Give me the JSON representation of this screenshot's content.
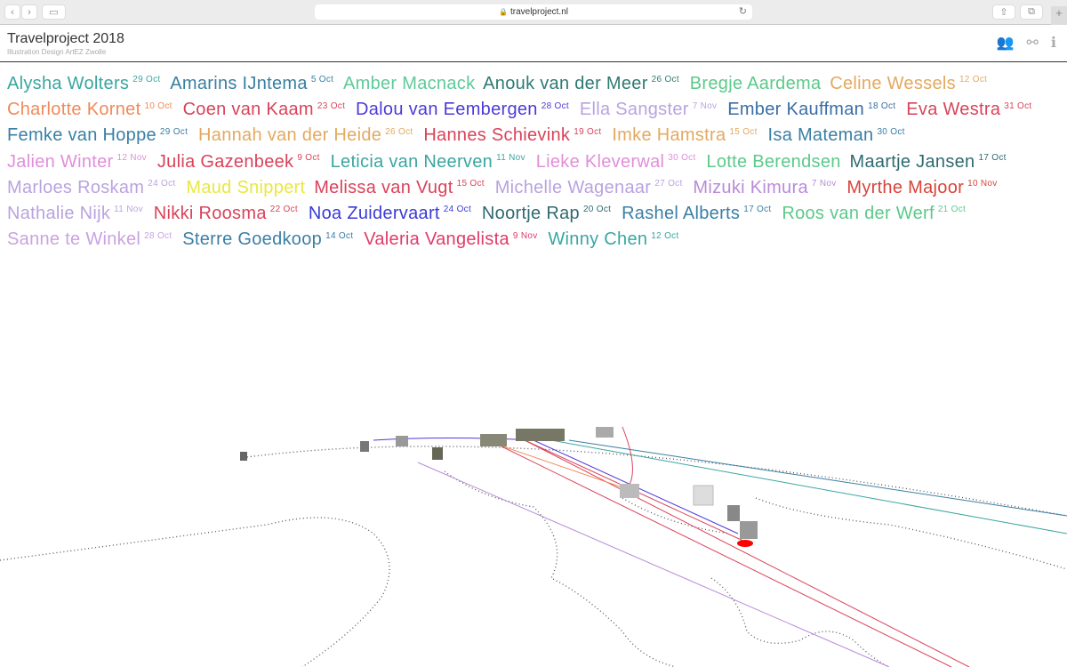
{
  "browser": {
    "url": "travelproject.nl",
    "plus": "+"
  },
  "header": {
    "title": "Travelproject 2018",
    "subtitle": "Illustration Design ArtEZ Zwolle",
    "icons": [
      "people-icon",
      "network-icon",
      "info-icon"
    ]
  },
  "students": [
    {
      "name": "Alysha Wolters",
      "date": "29 Oct",
      "color": "#3aa6a0"
    },
    {
      "name": "Amarins IJntema",
      "date": "5 Oct",
      "color": "#3a7fa0"
    },
    {
      "name": "Amber Macnack",
      "date": "",
      "color": "#5fc99a"
    },
    {
      "name": "Anouk van der Meer",
      "date": "26 Oct",
      "color": "#2e7a73"
    },
    {
      "name": "Bregje Aardema",
      "date": "",
      "color": "#5cc98a"
    },
    {
      "name": "Celine Wessels",
      "date": "12 Oct",
      "color": "#e3a960"
    },
    {
      "name": "Charlotte Kornet",
      "date": "10 Oct",
      "color": "#f08a5a"
    },
    {
      "name": "Coen van Kaam",
      "date": "23 Oct",
      "color": "#d9435a"
    },
    {
      "name": "Dalou van Eembergen",
      "date": "28 Oct",
      "color": "#4d3ad9"
    },
    {
      "name": "Ella Sangster",
      "date": "7 Nov",
      "color": "#b9a3e0"
    },
    {
      "name": "Ember Kauffman",
      "date": "18 Oct",
      "color": "#3a6ea5"
    },
    {
      "name": "Eva Westra",
      "date": "31 Oct",
      "color": "#d9435a"
    },
    {
      "name": "Femke van Hoppe",
      "date": "29 Oct",
      "color": "#3a7fa5"
    },
    {
      "name": "Hannah van der Heide",
      "date": "26 Oct",
      "color": "#e3a960"
    },
    {
      "name": "Hannes Schievink",
      "date": "19 Oct",
      "color": "#d9435a"
    },
    {
      "name": "Imke Hamstra",
      "date": "15 Oct",
      "color": "#e3a960"
    },
    {
      "name": "Isa Mateman",
      "date": "30 Oct",
      "color": "#3a7fa5"
    },
    {
      "name": "Jalien Winter",
      "date": "12 Nov",
      "color": "#e08fd9"
    },
    {
      "name": "Julia Gazenbeek",
      "date": "9 Oct",
      "color": "#d9435a"
    },
    {
      "name": "Leticia van Neerven",
      "date": "11 Nov",
      "color": "#3aa6a0"
    },
    {
      "name": "Lieke Kleverwal",
      "date": "30 Oct",
      "color": "#e08fd9"
    },
    {
      "name": "Lotte Berendsen",
      "date": "",
      "color": "#5cc98a"
    },
    {
      "name": "Maartje Jansen",
      "date": "17 Oct",
      "color": "#2e6a70"
    },
    {
      "name": "Marloes Roskam",
      "date": "24 Oct",
      "color": "#b9a3e0"
    },
    {
      "name": "Maud Snippert",
      "date": "",
      "color": "#e8e840"
    },
    {
      "name": "Melissa van Vugt",
      "date": "15 Oct",
      "color": "#d9435a"
    },
    {
      "name": "Michelle Wagenaar",
      "date": "27 Oct",
      "color": "#b9a3e0"
    },
    {
      "name": "Mizuki Kimura",
      "date": "7 Nov",
      "color": "#b98ad9"
    },
    {
      "name": "Myrthe Majoor",
      "date": "10 Nov",
      "color": "#d9433a"
    },
    {
      "name": "Nathalie Nijk",
      "date": "11 Nov",
      "color": "#b9a3e0"
    },
    {
      "name": "Nikki Roosma",
      "date": "22 Oct",
      "color": "#d9435a"
    },
    {
      "name": "Noa Zuidervaart",
      "date": "24 Oct",
      "color": "#3a3ad9"
    },
    {
      "name": "Noortje Rap",
      "date": "20 Oct",
      "color": "#2e6a70"
    },
    {
      "name": "Rashel Alberts",
      "date": "17 Oct",
      "color": "#3a7fa5"
    },
    {
      "name": "Roos van der Werf",
      "date": "21 Oct",
      "color": "#5cc98a"
    },
    {
      "name": "Sanne te Winkel",
      "date": "28 Oct",
      "color": "#c9a3e0"
    },
    {
      "name": "Sterre Goedkoop",
      "date": "14 Oct",
      "color": "#3a7fa5"
    },
    {
      "name": "Valeria Vangelista",
      "date": "9 Nov",
      "color": "#e03a6a"
    },
    {
      "name": "Winny Chen",
      "date": "12 Oct",
      "color": "#3aa6a0"
    }
  ]
}
